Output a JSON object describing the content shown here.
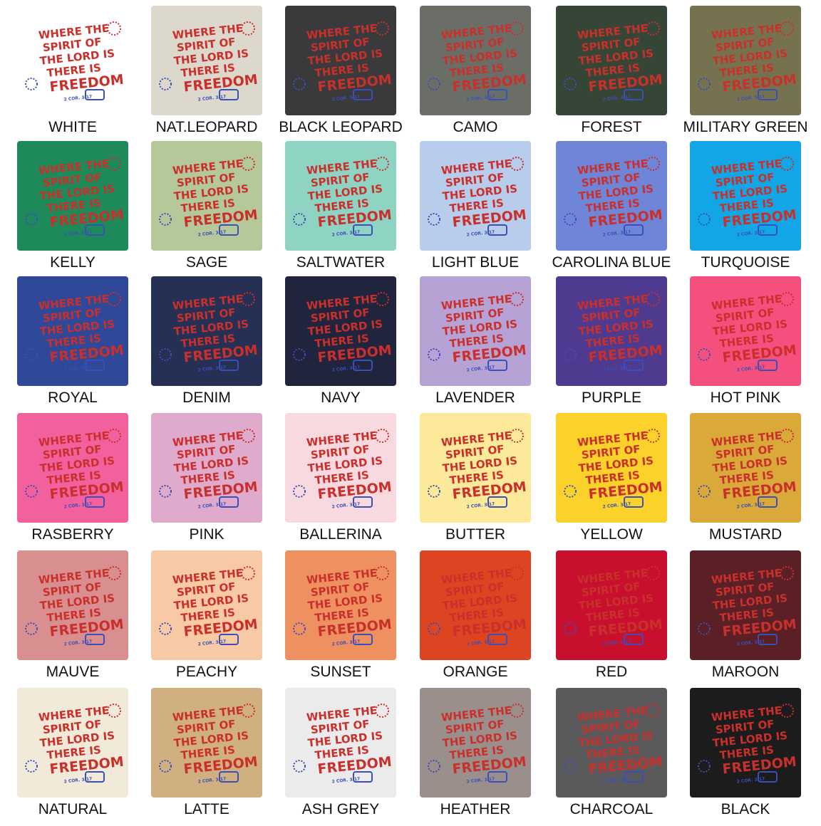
{
  "design": {
    "lines": [
      "WHERE THE",
      "SPIRIT OF",
      "THE LORD IS",
      "THERE IS",
      "FREEDOM"
    ],
    "reference": "2 COR. 3:17"
  },
  "swatches": [
    {
      "name": "WHITE",
      "color": "#ffffff"
    },
    {
      "name": "NAT.LEOPARD",
      "color": "#ddd8cc"
    },
    {
      "name": "BLACK LEOPARD",
      "color": "#3a3a3c"
    },
    {
      "name": "CAMO",
      "color": "#6a6e66"
    },
    {
      "name": "FOREST",
      "color": "#364636"
    },
    {
      "name": "MILITARY GREEN",
      "color": "#76724f"
    },
    {
      "name": "KELLY",
      "color": "#1e8a5a"
    },
    {
      "name": "SAGE",
      "color": "#b4c89a"
    },
    {
      "name": "SALTWATER",
      "color": "#8fd3c2"
    },
    {
      "name": "LIGHT BLUE",
      "color": "#b8ccec"
    },
    {
      "name": "CAROLINA BLUE",
      "color": "#6f86d8"
    },
    {
      "name": "TURQUOISE",
      "color": "#12a6e6"
    },
    {
      "name": "ROYAL",
      "color": "#2f4898"
    },
    {
      "name": "DENIM",
      "color": "#263055"
    },
    {
      "name": "NAVY",
      "color": "#20243c"
    },
    {
      "name": "LAVENDER",
      "color": "#b7a2d6"
    },
    {
      "name": "PURPLE",
      "color": "#4e3a8e"
    },
    {
      "name": "HOT PINK",
      "color": "#f4507e"
    },
    {
      "name": "RASBERRY",
      "color": "#f2609e"
    },
    {
      "name": "PINK",
      "color": "#dfaacb"
    },
    {
      "name": "BALLERINA",
      "color": "#f9d9e0"
    },
    {
      "name": "BUTTER",
      "color": "#fde99a"
    },
    {
      "name": "YELLOW",
      "color": "#fbd22a"
    },
    {
      "name": "MUSTARD",
      "color": "#d9a93a"
    },
    {
      "name": "MAUVE",
      "color": "#d98f8f"
    },
    {
      "name": "PEACHY",
      "color": "#f8c9a5"
    },
    {
      "name": "SUNSET",
      "color": "#ef9060"
    },
    {
      "name": "ORANGE",
      "color": "#dd4422"
    },
    {
      "name": "RED",
      "color": "#c8102e"
    },
    {
      "name": "MAROON",
      "color": "#5a2026"
    },
    {
      "name": "NATURAL",
      "color": "#f2ead8"
    },
    {
      "name": "LATTE",
      "color": "#d0b080"
    },
    {
      "name": "ASH GREY",
      "color": "#ecebec"
    },
    {
      "name": "HEATHER",
      "color": "#9b8f8c"
    },
    {
      "name": "CHARCOAL",
      "color": "#5a5a5c"
    },
    {
      "name": "BLACK",
      "color": "#1c1c1c"
    }
  ]
}
